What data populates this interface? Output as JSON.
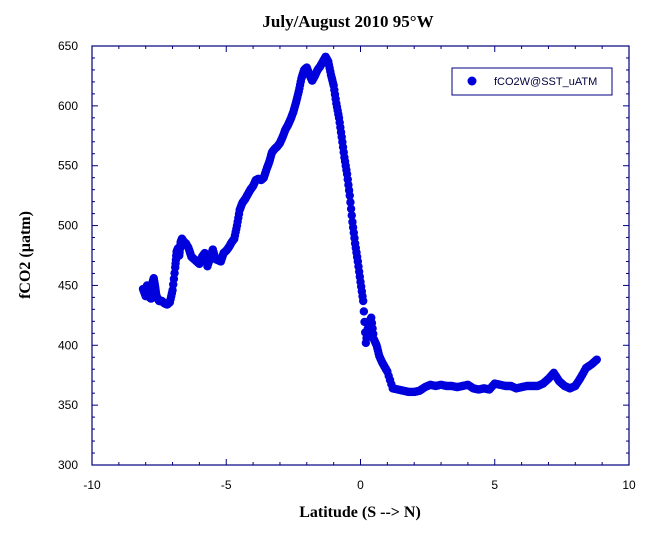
{
  "chart_data": {
    "type": "scatter",
    "title": "July/August 2010 95°W",
    "xlabel": "Latitude (S --> N)",
    "ylabel": "fCO2 (µatm)",
    "xlim": [
      -10,
      10
    ],
    "ylim": [
      300,
      650
    ],
    "xticks": [
      -10,
      -5,
      0,
      5,
      10
    ],
    "yticks": [
      300,
      350,
      400,
      450,
      500,
      550,
      600,
      650
    ],
    "grid": false,
    "legend_position": "top-right",
    "colors": {
      "series": "#0000dd",
      "axis": "#000080"
    },
    "series": [
      {
        "name": "fCO2W@SST_uATM",
        "x": [
          -8.1,
          -8.0,
          -7.95,
          -7.9,
          -7.85,
          -7.8,
          -7.75,
          -7.7,
          -7.65,
          -7.6,
          -7.55,
          -7.5,
          -7.4,
          -7.3,
          -7.2,
          -7.1,
          -7.0,
          -6.9,
          -6.85,
          -6.8,
          -6.75,
          -6.7,
          -6.65,
          -6.6,
          -6.5,
          -6.4,
          -6.3,
          -6.2,
          -6.1,
          -6.0,
          -5.9,
          -5.8,
          -5.7,
          -5.6,
          -5.5,
          -5.4,
          -5.3,
          -5.2,
          -5.1,
          -5.0,
          -4.9,
          -4.8,
          -4.7,
          -4.6,
          -4.5,
          -4.4,
          -4.3,
          -4.2,
          -4.1,
          -4.0,
          -3.9,
          -3.8,
          -3.7,
          -3.6,
          -3.5,
          -3.4,
          -3.3,
          -3.2,
          -3.1,
          -3.0,
          -2.9,
          -2.8,
          -2.7,
          -2.6,
          -2.5,
          -2.4,
          -2.3,
          -2.2,
          -2.1,
          -2.0,
          -1.9,
          -1.8,
          -1.7,
          -1.6,
          -1.5,
          -1.4,
          -1.3,
          -1.2,
          -1.1,
          -1.0,
          -0.9,
          -0.8,
          -0.7,
          -0.6,
          -0.5,
          -0.4,
          -0.3,
          -0.2,
          -0.1,
          0.0,
          0.1,
          0.2,
          0.3,
          0.4,
          0.5,
          0.6,
          0.7,
          0.8,
          0.9,
          1.0,
          1.2,
          1.4,
          1.6,
          1.8,
          2.0,
          2.2,
          2.4,
          2.6,
          2.8,
          3.0,
          3.2,
          3.4,
          3.6,
          3.8,
          4.0,
          4.2,
          4.4,
          4.6,
          4.8,
          5.0,
          5.2,
          5.4,
          5.6,
          5.8,
          6.0,
          6.2,
          6.4,
          6.6,
          6.8,
          7.0,
          7.2,
          7.4,
          7.6,
          7.8,
          8.0,
          8.2,
          8.4,
          8.6,
          8.8
        ],
        "y": [
          447,
          441,
          450,
          443,
          440,
          439,
          452,
          456,
          449,
          441,
          439,
          437,
          437,
          435,
          434,
          436,
          446,
          465,
          478,
          481,
          475,
          486,
          489,
          487,
          485,
          481,
          474,
          472,
          470,
          468,
          474,
          477,
          466,
          473,
          480,
          472,
          471,
          470,
          477,
          479,
          482,
          486,
          489,
          500,
          513,
          519,
          522,
          526,
          530,
          533,
          538,
          539,
          538,
          540,
          547,
          553,
          561,
          564,
          566,
          569,
          574,
          580,
          584,
          589,
          595,
          603,
          612,
          623,
          630,
          632,
          626,
          621,
          625,
          630,
          633,
          637,
          641,
          637,
          626,
          617,
          602,
          590,
          574,
          557,
          543,
          525,
          503,
          485,
          470,
          453,
          437,
          402,
          418,
          423,
          405,
          400,
          391,
          386,
          382,
          378,
          364,
          363,
          362,
          361,
          361,
          362,
          365,
          367,
          366,
          367,
          366,
          366,
          365,
          366,
          367,
          364,
          363,
          364,
          363,
          368,
          367,
          366,
          366,
          364,
          365,
          366,
          366,
          366,
          368,
          372,
          377,
          370,
          366,
          364,
          366,
          373,
          381,
          384,
          388
        ]
      }
    ]
  }
}
